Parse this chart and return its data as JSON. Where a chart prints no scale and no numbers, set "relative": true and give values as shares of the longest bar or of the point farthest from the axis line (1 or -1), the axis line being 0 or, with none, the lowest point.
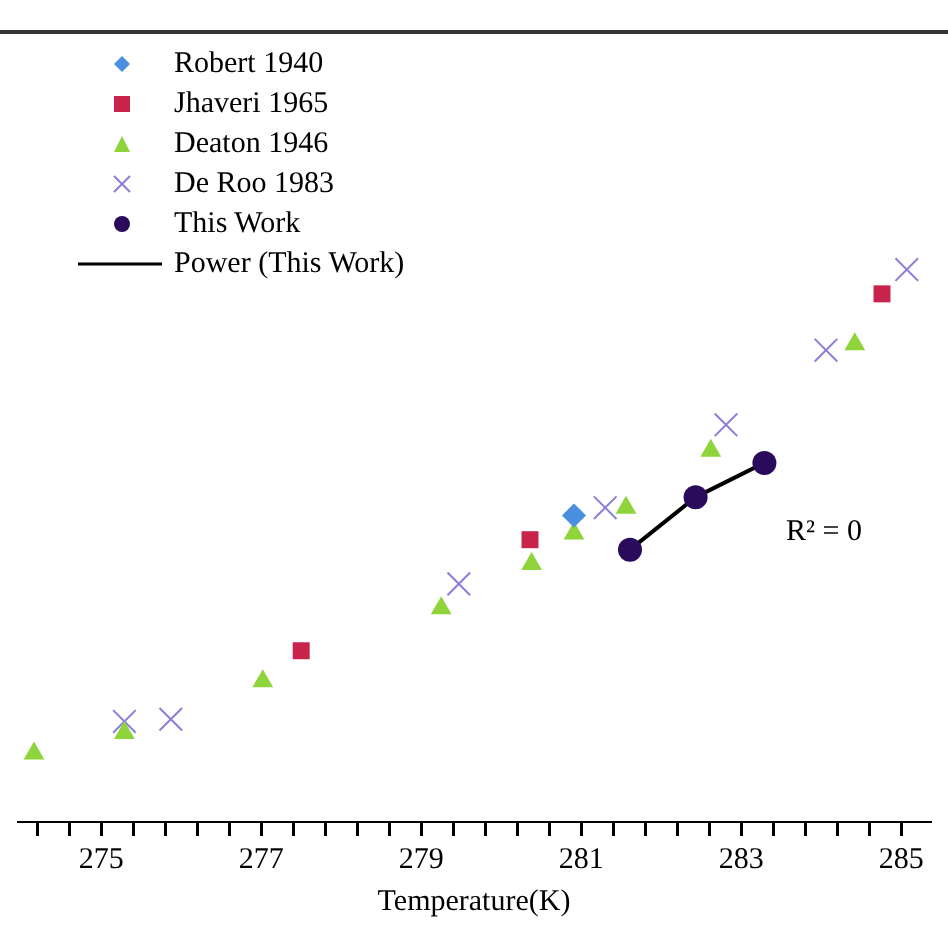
{
  "chart_data": {
    "type": "scatter",
    "xlabel": "Temperature(K)",
    "relative": true,
    "legend": "top left",
    "xlim": [
      273.96,
      285.36
    ],
    "xticks": [
      {
        "value": 274.2,
        "label": null
      },
      {
        "value": 274.6,
        "label": null
      },
      275,
      {
        "value": 275.4,
        "label": null
      },
      {
        "value": 275.8,
        "label": null
      },
      {
        "value": 276.2,
        "label": null
      },
      {
        "value": 276.6,
        "label": null
      },
      277,
      {
        "value": 277.4,
        "label": null
      },
      {
        "value": 277.8,
        "label": null
      },
      {
        "value": 278.2,
        "label": null
      },
      {
        "value": 278.6,
        "label": null
      },
      279,
      {
        "value": 279.4,
        "label": null
      },
      {
        "value": 279.8,
        "label": null
      },
      {
        "value": 280.2,
        "label": null
      },
      {
        "value": 280.6,
        "label": null
      },
      281,
      {
        "value": 281.4,
        "label": null
      },
      {
        "value": 281.8,
        "label": null
      },
      {
        "value": 282.2,
        "label": null
      },
      {
        "value": 282.6,
        "label": null
      },
      283,
      {
        "value": 283.4,
        "label": null
      },
      {
        "value": 283.8,
        "label": null
      },
      {
        "value": 284.2,
        "label": null
      },
      {
        "value": 284.6,
        "label": null
      },
      285
    ],
    "annotations": [
      "R² = 0"
    ],
    "series": [
      {
        "name": "Robert 1940",
        "color": "#4a8fe0",
        "marker": "diamond",
        "x": [
          280.91
        ],
        "values": [
          0.555
        ]
      },
      {
        "name": "Jhaveri 1965",
        "color": "#c8234a",
        "marker": "square",
        "x": [
          277.5,
          280.36,
          284.76
        ],
        "values": [
          0.31,
          0.511,
          0.956
        ]
      },
      {
        "name": "Deaton 1946",
        "color": "#8fd43a",
        "marker": "triangle",
        "x": [
          274.16,
          275.29,
          277.02,
          279.25,
          280.38,
          280.91,
          281.56,
          282.62,
          284.42
        ],
        "values": [
          0.124,
          0.161,
          0.255,
          0.387,
          0.467,
          0.522,
          0.569,
          0.672,
          0.865
        ]
      },
      {
        "name": "De Roo 1983",
        "color": "#8a7fd8",
        "marker": "cross",
        "x": [
          275.29,
          275.87,
          279.47,
          281.3,
          282.81,
          284.06,
          285.07
        ],
        "values": [
          0.182,
          0.186,
          0.431,
          0.569,
          0.719,
          0.854,
          1
        ]
      },
      {
        "name": "This Work",
        "color": "#2a0a5a",
        "marker": "circle",
        "x": [
          281.61,
          282.43,
          283.29
        ],
        "values": [
          0.493,
          0.588,
          0.65
        ]
      },
      {
        "name": "Power (This Work)",
        "type": "line",
        "color": "#000000",
        "marker": "none",
        "line_style": "solid",
        "x": [
          281.61,
          282.43,
          283.29
        ],
        "values": [
          0.493,
          0.588,
          0.65
        ]
      }
    ]
  }
}
